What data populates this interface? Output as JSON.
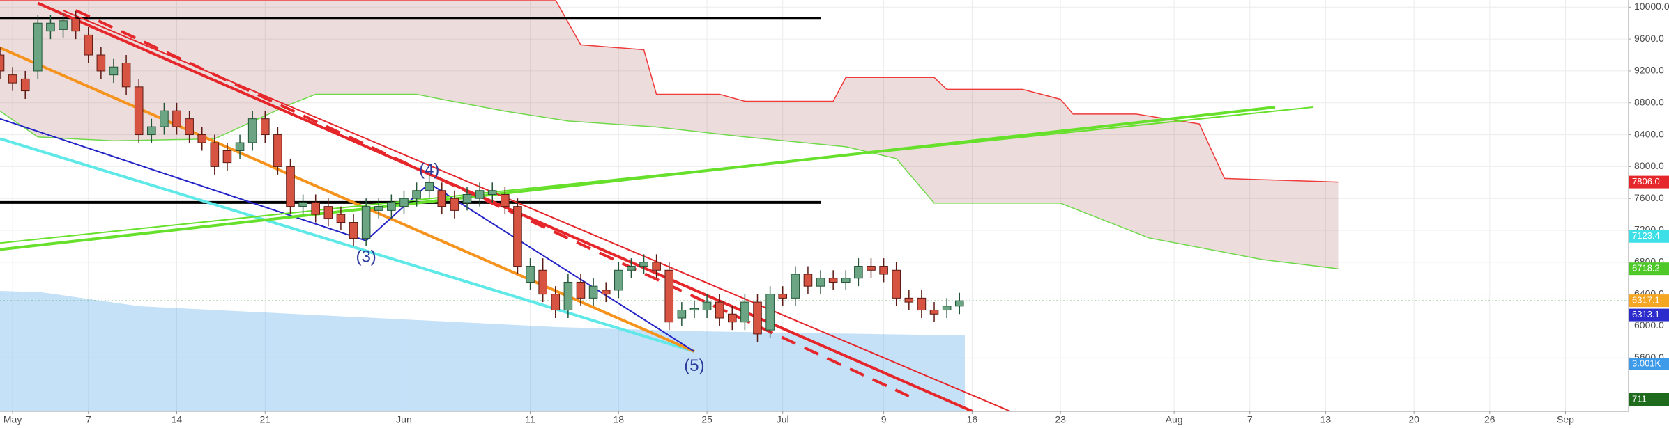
{
  "chart_data": {
    "type": "candlestick",
    "x": [
      "Apr 30",
      "May 1",
      "May 2",
      "May 3",
      "May 4",
      "May 5",
      "May 6",
      "May 7",
      "May 8",
      "May 9",
      "May 10",
      "May 11",
      "May 12",
      "May 13",
      "May 14",
      "May 15",
      "May 16",
      "May 17",
      "May 18",
      "May 19",
      "May 20",
      "May 21",
      "May 22",
      "May 23",
      "May 24",
      "May 25",
      "May 26",
      "May 27",
      "May 28",
      "May 29",
      "May 30",
      "May 31",
      "Jun 1",
      "Jun 2",
      "Jun 3",
      "Jun 4",
      "Jun 5",
      "Jun 6",
      "Jun 7",
      "Jun 8",
      "Jun 9",
      "Jun 10",
      "Jun 11",
      "Jun 12",
      "Jun 13",
      "Jun 14",
      "Jun 15",
      "Jun 16",
      "Jun 17",
      "Jun 18",
      "Jun 19",
      "Jun 20",
      "Jun 21",
      "Jun 22",
      "Jun 23",
      "Jun 24",
      "Jun 25",
      "Jun 26",
      "Jun 27",
      "Jun 28",
      "Jun 29",
      "Jun 30",
      "Jul 1",
      "Jul 2",
      "Jul 3",
      "Jul 4",
      "Jul 5",
      "Jul 6",
      "Jul 7",
      "Jul 8",
      "Jul 9",
      "Jul 10",
      "Jul 11",
      "Jul 12",
      "Jul 13",
      "Jul 14",
      "Jul 15"
    ],
    "open": [
      9400,
      9150,
      9100,
      9200,
      9700,
      9720,
      9850,
      9650,
      9400,
      9150,
      9300,
      9000,
      8400,
      8500,
      8700,
      8600,
      8400,
      8300,
      8200,
      8200,
      8300,
      8600,
      8400,
      8000,
      7500,
      7550,
      7500,
      7400,
      7300,
      7100,
      7450,
      7450,
      7500,
      7600,
      7700,
      7700,
      7600,
      7550,
      7600,
      7650,
      7650,
      7500,
      6550,
      6700,
      6400,
      6200,
      6550,
      6350,
      6450,
      6450,
      6700,
      6750,
      6800,
      6700,
      6100,
      6200,
      6200,
      6300,
      6150,
      6050,
      6300,
      5950,
      6400,
      6350,
      6650,
      6500,
      6600,
      6550,
      6600,
      6750,
      6750,
      6700,
      6350,
      6350,
      6200,
      6200,
      6250
    ],
    "high": [
      9500,
      9250,
      9200,
      9900,
      9900,
      9930,
      9950,
      9750,
      9500,
      9350,
      9400,
      9100,
      8600,
      8800,
      8800,
      8700,
      8500,
      8400,
      8300,
      8400,
      8700,
      8700,
      8500,
      8100,
      7650,
      7650,
      7600,
      7500,
      7400,
      7600,
      7600,
      7650,
      7700,
      7800,
      7900,
      7800,
      7700,
      7750,
      7800,
      7800,
      7750,
      7600,
      6850,
      6850,
      6500,
      6650,
      6650,
      6600,
      6550,
      6800,
      6850,
      6900,
      6900,
      6800,
      6300,
      6320,
      6400,
      6400,
      6250,
      6400,
      6400,
      6500,
      6500,
      6750,
      6750,
      6700,
      6700,
      6700,
      6850,
      6850,
      6850,
      6800,
      6450,
      6450,
      6300,
      6350,
      6417
    ],
    "low": [
      9100,
      8950,
      8850,
      9100,
      9600,
      9620,
      9600,
      9300,
      9100,
      9050,
      8900,
      8300,
      8300,
      8400,
      8400,
      8300,
      8200,
      7900,
      7950,
      8100,
      8200,
      8300,
      7900,
      7400,
      7400,
      7300,
      7250,
      7200,
      7000,
      7000,
      7350,
      7350,
      7400,
      7500,
      7600,
      7400,
      7350,
      7450,
      7500,
      7550,
      7400,
      6650,
      6450,
      6300,
      6100,
      6100,
      6250,
      6250,
      6300,
      6350,
      6600,
      6650,
      6600,
      5950,
      6000,
      6100,
      6100,
      6000,
      5950,
      5950,
      5800,
      5850,
      6250,
      6250,
      6400,
      6400,
      6450,
      6450,
      6500,
      6600,
      6550,
      6250,
      6200,
      6100,
      6050,
      6100,
      6150
    ],
    "close": [
      9200,
      9050,
      8950,
      9800,
      9800,
      9830,
      9700,
      9400,
      9200,
      9250,
      9000,
      8400,
      8500,
      8700,
      8500,
      8400,
      8300,
      8000,
      8050,
      8300,
      8600,
      8400,
      8000,
      7500,
      7550,
      7400,
      7350,
      7300,
      7100,
      7500,
      7500,
      7550,
      7600,
      7700,
      7800,
      7500,
      7450,
      7650,
      7700,
      7700,
      7500,
      6750,
      6750,
      6400,
      6200,
      6550,
      6350,
      6500,
      6400,
      6700,
      6750,
      6800,
      6700,
      6050,
      6200,
      6220,
      6300,
      6100,
      6050,
      6300,
      5900,
      6400,
      6350,
      6650,
      6500,
      6600,
      6550,
      6600,
      6750,
      6700,
      6650,
      6350,
      6300,
      6200,
      6150,
      6250,
      6317
    ],
    "up_color": "#6ba583",
    "down_color": "#d75442",
    "xlim": [
      "Apr 30",
      "Sep 6"
    ],
    "xticks": [
      {
        "value": "May 1",
        "label": "May"
      },
      {
        "value": "May 7",
        "label": "7"
      },
      {
        "value": "May 14",
        "label": "14"
      },
      {
        "value": "May 21",
        "label": "21"
      },
      {
        "value": "Jun 1",
        "label": "Jun"
      },
      {
        "value": "Jun 11",
        "label": "11"
      },
      {
        "value": "Jun 18",
        "label": "18"
      },
      {
        "value": "Jun 25",
        "label": "25"
      },
      {
        "value": "Jul 1",
        "label": "Jul"
      },
      {
        "value": "Jul 9",
        "label": "9"
      },
      {
        "value": "Jul 16",
        "label": "16"
      },
      {
        "value": "Jul 23",
        "label": "23"
      },
      {
        "value": "Aug 1",
        "label": "Aug"
      },
      {
        "value": "Aug 7",
        "label": "7"
      },
      {
        "value": "Aug 13",
        "label": "13"
      },
      {
        "value": "Aug 20",
        "label": "20"
      },
      {
        "value": "Aug 26",
        "label": "26"
      },
      {
        "value": "Sep 1",
        "label": "Sep"
      }
    ],
    "ylim": [
      4930,
      10090
    ],
    "yticks": [
      {
        "value": 5600,
        "label": "5600.0"
      },
      {
        "value": 6000,
        "label": "6000.0"
      },
      {
        "value": 6400,
        "label": "6400.0"
      },
      {
        "value": 6800,
        "label": "6800.0"
      },
      {
        "value": 7200,
        "label": "7200.0"
      },
      {
        "value": 7600,
        "label": "7600.0"
      },
      {
        "value": 8000,
        "label": "8000.0"
      },
      {
        "value": 8400,
        "label": "8400.0"
      },
      {
        "value": 8800,
        "label": "8800.0"
      },
      {
        "value": 9200,
        "label": "9200.0"
      },
      {
        "value": 9600,
        "label": "9600.0"
      },
      {
        "value": 10000,
        "label": "10000.0"
      }
    ],
    "grid": true,
    "cloud": {
      "fill": "rgba(160,80,80,0.2)",
      "span_b": {
        "color": "#ef3b3b",
        "x": [
          "Apr 30",
          "Jun 13",
          "Jun 15",
          "Jun 20",
          "Jun 21",
          "Jun 26",
          "Jun 28",
          "Jul 5",
          "Jul 6",
          "Jul 13",
          "Jul 14",
          "Jul 20",
          "Jul 23",
          "Jul 24",
          "Jul 29",
          "Aug 3",
          "Aug 5",
          "Aug 14"
        ],
        "values": [
          10090,
          10090,
          9528,
          9466,
          8907,
          8907,
          8820,
          8820,
          9118,
          9118,
          8969,
          8969,
          8845,
          8659,
          8659,
          8535,
          7851,
          7806
        ]
      },
      "span_a": {
        "color": "#6fd94a",
        "x": [
          "Apr 30",
          "May 3",
          "May 9",
          "May 17",
          "May 23",
          "May 25",
          "Jun 2",
          "Jun 4",
          "Jun 9",
          "Jun 14",
          "Jun 21",
          "Jun 28",
          "Jul 6",
          "Jul 10",
          "Jul 13",
          "Jul 23",
          "Jul 30",
          "Aug 8",
          "Aug 14"
        ],
        "values": [
          8696,
          8373,
          8323,
          8348,
          8783,
          8907,
          8907,
          8845,
          8696,
          8572,
          8497,
          8373,
          8249,
          8100,
          7541,
          7541,
          7106,
          6833,
          6718
        ]
      }
    },
    "lines": [
      {
        "color": "#000000",
        "thick": true,
        "x": [
          "Apr 30",
          "Jul 4"
        ],
        "values": [
          9860,
          9860
        ]
      },
      {
        "color": "#000000",
        "thick": true,
        "x": [
          "Apr 30",
          "Jul 4"
        ],
        "values": [
          7550,
          7550
        ]
      },
      {
        "color": "#5fe8e8",
        "thick": true,
        "x": [
          "Apr 30",
          "Jun 24"
        ],
        "values": [
          8350,
          5680
        ]
      },
      {
        "color": "#f5931d",
        "thick": true,
        "x": [
          "Apr 30",
          "Jun 24"
        ],
        "values": [
          9490,
          5680
        ]
      },
      {
        "color": "#2323c8",
        "thick": false,
        "x": [
          "Apr 30",
          "May 29",
          "Jun 3",
          "Jun 24"
        ],
        "values": [
          8600,
          7070,
          7790,
          5680
        ]
      },
      {
        "color": "#66e02b",
        "thick": true,
        "x": [
          "Apr 30",
          "Aug 9"
        ],
        "values": [
          6960,
          8745
        ]
      },
      {
        "color": "#66e02b",
        "thick": false,
        "x": [
          "Apr 30",
          "Aug 12"
        ],
        "values": [
          7040,
          8745
        ]
      },
      {
        "color": "#e5262a",
        "thick": true,
        "x": [
          "May 3",
          "Jul 16"
        ],
        "values": [
          10050,
          4932
        ]
      },
      {
        "color": "#e5262a",
        "thick": false,
        "x": [
          "May 5",
          "Jul 19"
        ],
        "values": [
          9960,
          4932
        ]
      },
      {
        "color": "#e5262a",
        "thick": true,
        "dashed": true,
        "x": [
          "May 6",
          "Jul 11"
        ],
        "values": [
          9960,
          5120
        ]
      }
    ],
    "annotations": [
      {
        "text": "(3)",
        "x": "May 29",
        "y": 6858
      },
      {
        "text": "(4)",
        "x": "Jun 3",
        "y": 7951
      },
      {
        "text": "(5)",
        "x": "Jun 24",
        "y": 5491
      }
    ],
    "price_labels": [
      {
        "value": 7806,
        "label": "7806.0",
        "color": "#e5262a"
      },
      {
        "value": 7123.4,
        "label": "7123.4",
        "color": "#3fdfe8"
      },
      {
        "value": 6718.2,
        "label": "6718.2",
        "color": "#4fc92a"
      },
      {
        "value": 6317.1,
        "label": "6317.1",
        "color": "#f5a623"
      },
      {
        "value": 6313.1,
        "label": "6313.1",
        "color": "#2c2ccc"
      }
    ],
    "volume_labels": [
      {
        "label": "3.001K",
        "color": "#3d9be9"
      },
      {
        "label": "711",
        "color": "#1e6b1e"
      }
    ]
  }
}
